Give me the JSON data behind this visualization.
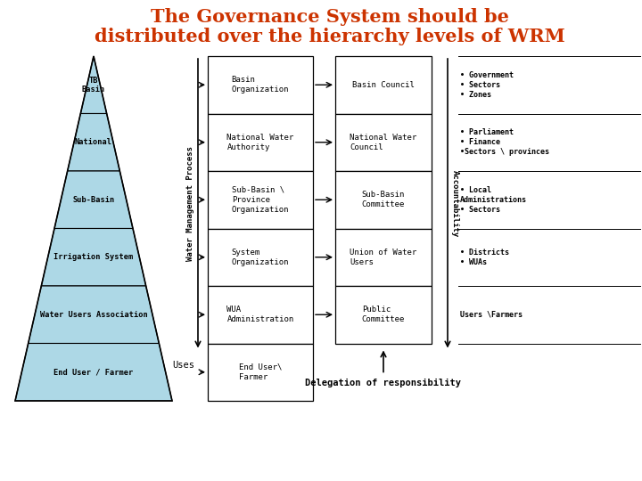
{
  "title_line1": "The Governance System should be",
  "title_line2": "distributed over the hierarchy levels of WRM",
  "title_color": "#CC3300",
  "bg_color": "#FFFFFF",
  "pyramid_fill": "#ADD8E6",
  "pyramid_outline": "#000000",
  "pyramid_levels": [
    "TB\nBasin",
    "National",
    "Sub-Basin",
    "Irrigation System",
    "Water Users Association",
    "End User / Farmer"
  ],
  "left_col_labels": [
    "Basin\nOrganization",
    "National Water\nAuthority",
    "Sub-Basin \\\nProvince\nOrganization",
    "System\nOrganization",
    "WUA\nAdministration",
    "End User\\\nFarmer"
  ],
  "right_col_labels": [
    "Basin Council",
    "National Water\nCouncil",
    "Sub-Basin\nCommittee",
    "Union of Water\nUsers",
    "Public\nCommittee"
  ],
  "accountability_labels": [
    "• Government\n• Sectors\n• Zones",
    "• Parliament\n• Finance\n•Sectors \\ provinces",
    "• Local\nAdministrations\n• Sectors",
    "• Districts\n• WUAs",
    "Users \\Farmers"
  ],
  "wmp_label": "Water Management Process",
  "uses_label": "Uses",
  "accountability_label": "Accountability",
  "delegation_label": "Delegation of responsibility",
  "box_color": "#FFFFFF",
  "box_edge": "#000000",
  "font_size_title": 15,
  "font_size_body": 7.5,
  "font_size_small": 6.5
}
